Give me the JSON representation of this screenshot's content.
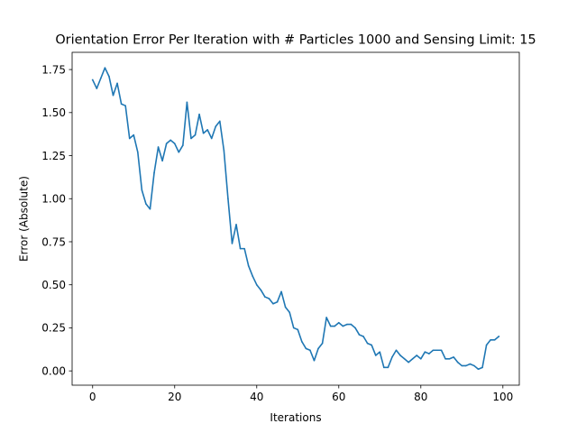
{
  "chart_data": {
    "type": "line",
    "title": "Orientation Error Per Iteration with # Particles 1000 and Sensing Limit: 15",
    "xlabel": "Iterations",
    "ylabel": "Error (Absolute)",
    "xlim": [
      -5,
      104
    ],
    "ylim": [
      -0.083,
      1.85
    ],
    "xticks": [
      0,
      20,
      40,
      60,
      80,
      100
    ],
    "xtick_labels": [
      "0",
      "20",
      "40",
      "60",
      "80",
      "100"
    ],
    "yticks": [
      0.0,
      0.25,
      0.5,
      0.75,
      1.0,
      1.25,
      1.5,
      1.75
    ],
    "ytick_labels": [
      "0.00",
      "0.25",
      "0.50",
      "0.75",
      "1.00",
      "1.25",
      "1.50",
      "1.75"
    ],
    "grid": false,
    "legend": "none",
    "series": [
      {
        "color": "#1f77b4",
        "x": [
          0,
          1,
          2,
          3,
          4,
          5,
          6,
          7,
          8,
          9,
          10,
          11,
          12,
          13,
          14,
          15,
          16,
          17,
          18,
          19,
          20,
          21,
          22,
          23,
          24,
          25,
          26,
          27,
          28,
          29,
          30,
          31,
          32,
          33,
          34,
          35,
          36,
          37,
          38,
          39,
          40,
          41,
          42,
          43,
          44,
          45,
          46,
          47,
          48,
          49,
          50,
          51,
          52,
          53,
          54,
          55,
          56,
          57,
          58,
          59,
          60,
          61,
          62,
          63,
          64,
          65,
          66,
          67,
          68,
          69,
          70,
          71,
          72,
          73,
          74,
          75,
          76,
          77,
          78,
          79,
          80,
          81,
          82,
          83,
          84,
          85,
          86,
          87,
          88,
          89,
          90,
          91,
          92,
          93,
          94,
          95,
          96,
          97,
          98,
          99
        ],
        "values": [
          1.69,
          1.64,
          1.7,
          1.76,
          1.71,
          1.6,
          1.67,
          1.55,
          1.54,
          1.35,
          1.37,
          1.27,
          1.05,
          0.97,
          0.94,
          1.15,
          1.3,
          1.22,
          1.32,
          1.34,
          1.32,
          1.27,
          1.31,
          1.56,
          1.35,
          1.37,
          1.49,
          1.38,
          1.4,
          1.35,
          1.42,
          1.45,
          1.28,
          1.0,
          0.74,
          0.85,
          0.71,
          0.71,
          0.61,
          0.55,
          0.5,
          0.47,
          0.43,
          0.42,
          0.39,
          0.4,
          0.46,
          0.37,
          0.34,
          0.25,
          0.24,
          0.17,
          0.13,
          0.12,
          0.06,
          0.13,
          0.16,
          0.31,
          0.26,
          0.26,
          0.28,
          0.26,
          0.27,
          0.27,
          0.25,
          0.21,
          0.2,
          0.16,
          0.15,
          0.09,
          0.11,
          0.02,
          0.02,
          0.08,
          0.12,
          0.09,
          0.07,
          0.05,
          0.07,
          0.09,
          0.07,
          0.11,
          0.1,
          0.12,
          0.12,
          0.12,
          0.07,
          0.07,
          0.08,
          0.05,
          0.03,
          0.03,
          0.04,
          0.03,
          0.01,
          0.02,
          0.15,
          0.18,
          0.18,
          0.2
        ]
      }
    ]
  }
}
